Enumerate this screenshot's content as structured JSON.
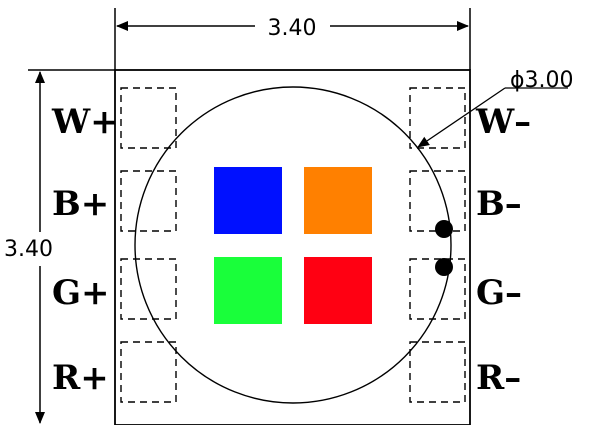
{
  "dimensions": {
    "width_label": "3.40",
    "height_label": "3.40",
    "diameter_label": "ϕ3.00"
  },
  "pins": {
    "left": [
      "W+",
      "B+",
      "G+",
      "R+"
    ],
    "right": [
      "W–",
      "B–",
      "G–",
      "R–"
    ]
  },
  "dies": {
    "blue": "#0010ff",
    "orange": "#ff8000",
    "green": "#19ff3a",
    "red": "#ff0012"
  }
}
